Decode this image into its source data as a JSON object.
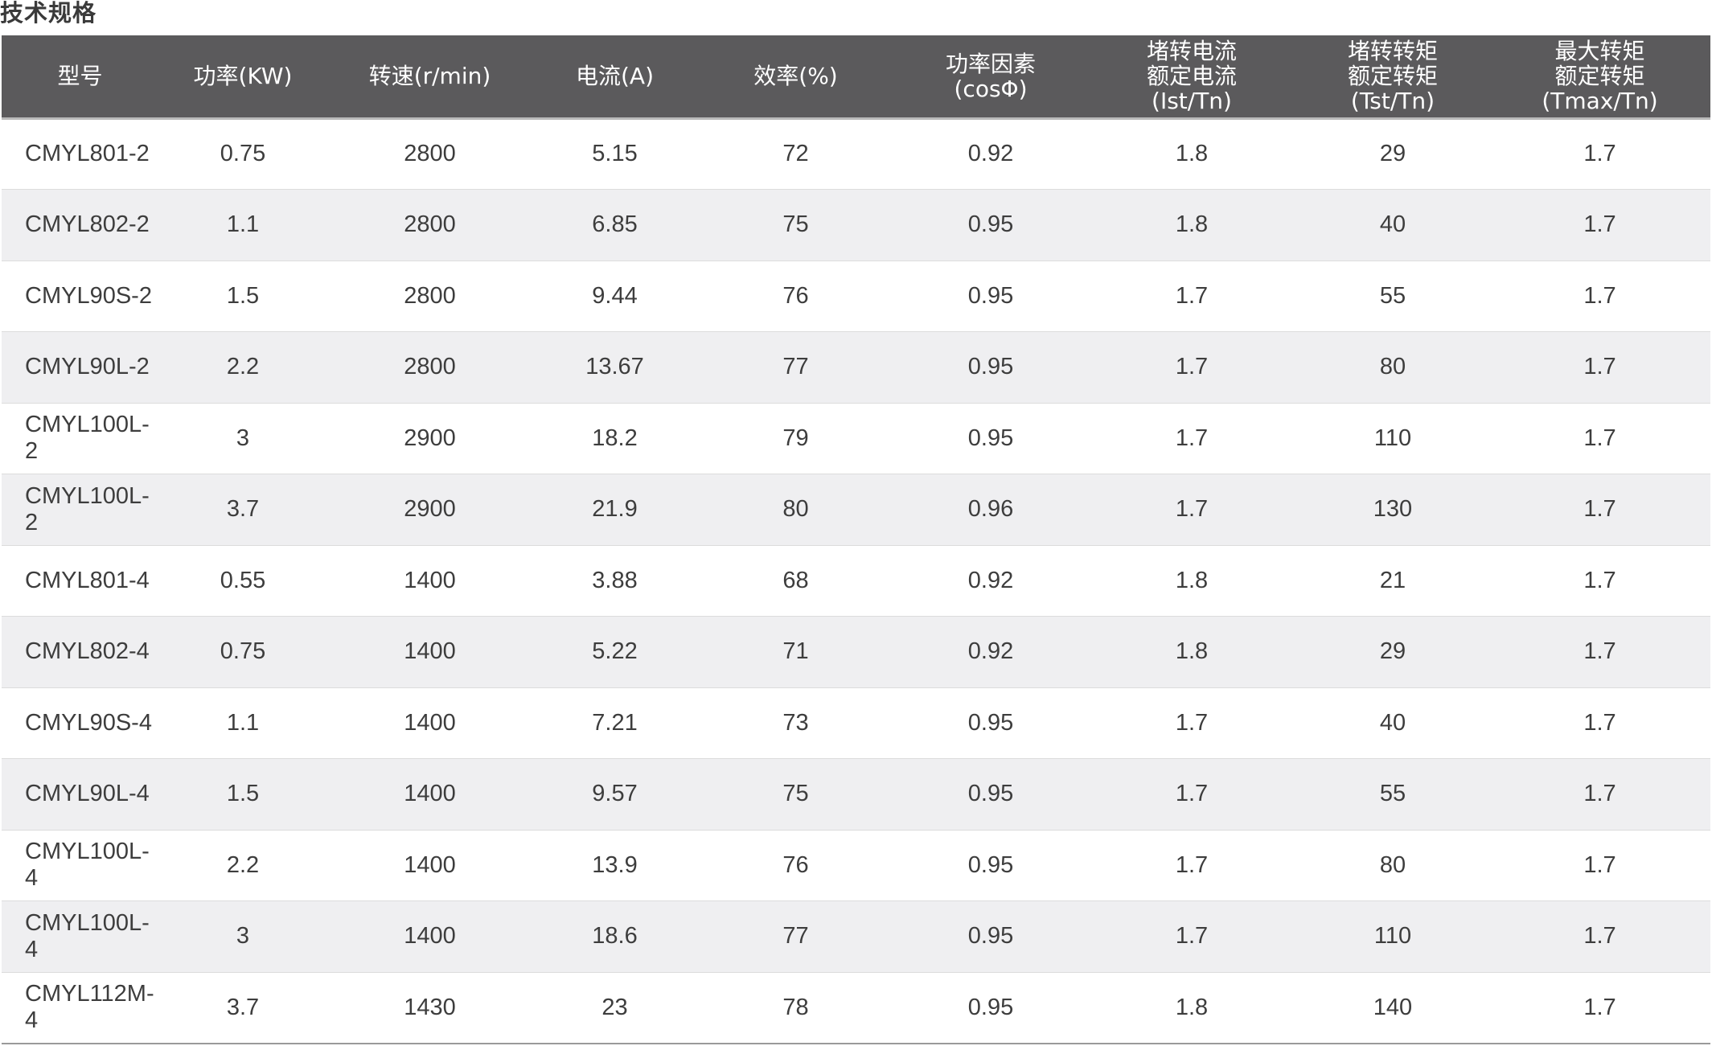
{
  "title": "技术规格",
  "header": [
    [
      "型号"
    ],
    [
      "功率(KW)"
    ],
    [
      "转速(r/min)"
    ],
    [
      "电流(A)"
    ],
    [
      "效率(%)"
    ],
    [
      "功率因素",
      "(cosΦ)"
    ],
    [
      "堵转电流",
      "额定电流",
      "(Ist/Tn)"
    ],
    [
      "堵转转矩",
      "额定转矩",
      "(Tst/Tn)"
    ],
    [
      "最大转矩",
      "额定转矩",
      "(Tmax/Tn)"
    ]
  ],
  "rows": [
    [
      "CMYL801-2",
      "0.75",
      "2800",
      "5.15",
      "72",
      "0.92",
      "1.8",
      "29",
      "1.7"
    ],
    [
      "CMYL802-2",
      "1.1",
      "2800",
      "6.85",
      "75",
      "0.95",
      "1.8",
      "40",
      "1.7"
    ],
    [
      "CMYL90S-2",
      "1.5",
      "2800",
      "9.44",
      "76",
      "0.95",
      "1.7",
      "55",
      "1.7"
    ],
    [
      "CMYL90L-2",
      "2.2",
      "2800",
      "13.67",
      "77",
      "0.95",
      "1.7",
      "80",
      "1.7"
    ],
    [
      "CMYL100L-2",
      "3",
      "2900",
      "18.2",
      "79",
      "0.95",
      "1.7",
      "110",
      "1.7"
    ],
    [
      "CMYL100L-2",
      "3.7",
      "2900",
      "21.9",
      "80",
      "0.96",
      "1.7",
      "130",
      "1.7"
    ],
    [
      "CMYL801-4",
      "0.55",
      "1400",
      "3.88",
      "68",
      "0.92",
      "1.8",
      "21",
      "1.7"
    ],
    [
      "CMYL802-4",
      "0.75",
      "1400",
      "5.22",
      "71",
      "0.92",
      "1.8",
      "29",
      "1.7"
    ],
    [
      "CMYL90S-4",
      "1.1",
      "1400",
      "7.21",
      "73",
      "0.95",
      "1.7",
      "40",
      "1.7"
    ],
    [
      "CMYL90L-4",
      "1.5",
      "1400",
      "9.57",
      "75",
      "0.95",
      "1.7",
      "55",
      "1.7"
    ],
    [
      "CMYL100L-4",
      "2.2",
      "1400",
      "13.9",
      "76",
      "0.95",
      "1.7",
      "80",
      "1.7"
    ],
    [
      "CMYL100L-4",
      "3",
      "1400",
      "18.6",
      "77",
      "0.95",
      "1.7",
      "110",
      "1.7"
    ],
    [
      "CMYL112M-4",
      "3.7",
      "1430",
      "23",
      "78",
      "0.95",
      "1.8",
      "140",
      "1.7"
    ]
  ],
  "colors": {
    "header_bg": "#5b5a5c",
    "header_text": "#ffffff",
    "row_alt_bg": "#efeff1",
    "body_text": "#3d3d3d"
  }
}
